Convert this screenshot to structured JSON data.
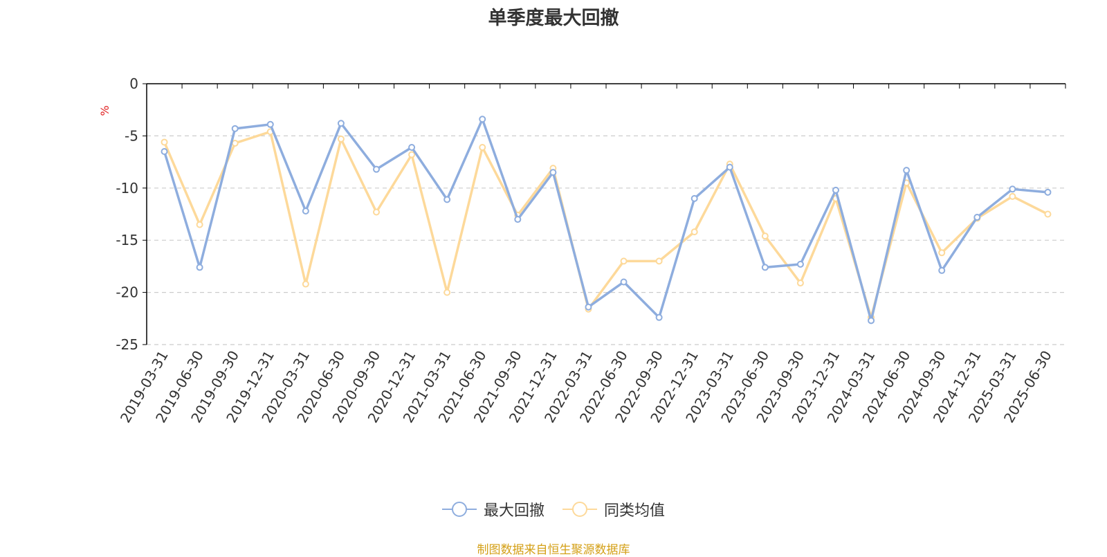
{
  "chart_data": {
    "type": "line",
    "title": "单季度最大回撤",
    "ylabel": "%",
    "ylim": [
      -25,
      0
    ],
    "yticks": [
      0,
      -5,
      -10,
      -15,
      -20,
      -25
    ],
    "grid": true,
    "legend_position": "bottom",
    "categories": [
      "2019-03-31",
      "2019-06-30",
      "2019-09-30",
      "2019-12-31",
      "2020-03-31",
      "2020-06-30",
      "2020-09-30",
      "2020-12-31",
      "2021-03-31",
      "2021-06-30",
      "2021-09-30",
      "2021-12-31",
      "2022-03-31",
      "2022-06-30",
      "2022-09-30",
      "2022-12-31",
      "2023-03-31",
      "2023-06-30",
      "2023-09-30",
      "2023-12-31",
      "2024-03-31",
      "2024-06-30",
      "2024-09-30",
      "2024-12-31",
      "2025-03-31",
      "2025-06-30"
    ],
    "series": [
      {
        "name": "最大回撤",
        "color": "#8eadde",
        "values": [
          -6.5,
          -17.6,
          -4.3,
          -3.9,
          -12.2,
          -3.8,
          -8.2,
          -6.1,
          -11.1,
          -3.4,
          -13.0,
          -8.5,
          -21.4,
          -19.0,
          -22.4,
          -11.0,
          -8.0,
          -17.6,
          -17.3,
          -10.2,
          -22.7,
          -8.3,
          -17.9,
          -12.8,
          -10.1,
          -10.4
        ]
      },
      {
        "name": "同类均值",
        "color": "#fdd99a",
        "values": [
          -5.6,
          -13.5,
          -5.7,
          -4.6,
          -19.2,
          -5.3,
          -12.3,
          -6.8,
          -20.0,
          -6.1,
          -12.6,
          -8.1,
          -21.6,
          -17.0,
          -17.0,
          -14.2,
          -7.7,
          -14.6,
          -19.1,
          -11.0,
          -22.4,
          -9.5,
          -16.2,
          -12.9,
          -10.8,
          -12.5
        ]
      }
    ]
  },
  "source_note": "制图数据来自恒生聚源数据库"
}
